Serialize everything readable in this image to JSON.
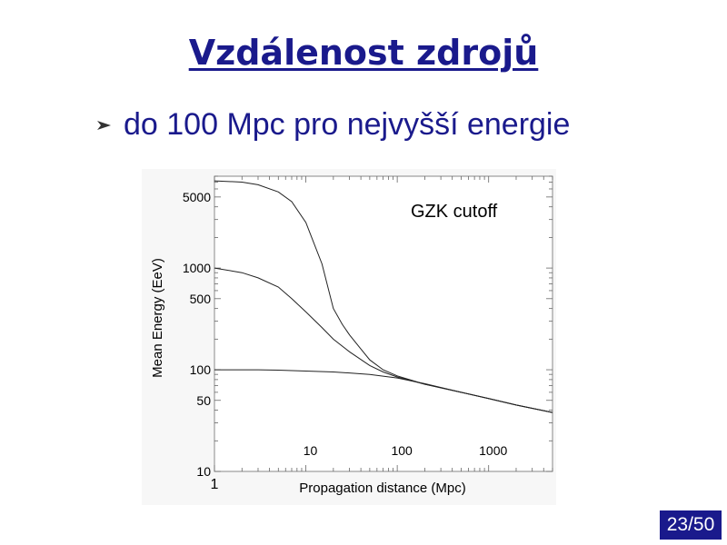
{
  "slide": {
    "title": "Vzdálenost zdrojů",
    "bullet_icon": "arrowhead-bullet-icon",
    "bullet_text": "do 100 Mpc pro nejvyšší energie",
    "page_number": "23/50",
    "accent_color": "#1a1a8c"
  },
  "chart_data": {
    "type": "line",
    "title": "GZK cutoff",
    "xlabel": "Propagation distance (Mpc)",
    "ylabel": "Mean Energy (EeV)",
    "x_scale": "log",
    "y_scale": "log",
    "xlim": [
      1,
      5000
    ],
    "ylim": [
      10,
      8000
    ],
    "x_ticks": [
      1,
      10,
      100,
      1000
    ],
    "x_tick_labels": [
      "1",
      "10",
      "100",
      "1000"
    ],
    "y_ticks": [
      10,
      50,
      100,
      500,
      1000,
      5000
    ],
    "y_tick_labels": [
      "10",
      "50",
      "100",
      "500",
      "1000",
      "5000"
    ],
    "grid": false,
    "series": [
      {
        "x": [
          1,
          2,
          3,
          5,
          7,
          10,
          15,
          20,
          25,
          30,
          40,
          50,
          70,
          100,
          200,
          500,
          1000,
          2000,
          5000
        ],
        "y": [
          7200,
          7000,
          6600,
          5600,
          4500,
          2800,
          1100,
          400,
          280,
          220,
          160,
          125,
          100,
          87,
          72,
          60,
          52,
          45,
          38
        ]
      },
      {
        "x": [
          1,
          2,
          3,
          5,
          7,
          10,
          15,
          20,
          30,
          50,
          70,
          100,
          200,
          500,
          1000,
          2000,
          5000
        ],
        "y": [
          1000,
          900,
          800,
          650,
          500,
          370,
          260,
          200,
          150,
          110,
          95,
          85,
          72,
          60,
          52,
          45,
          38
        ]
      },
      {
        "x": [
          1,
          2,
          3,
          5,
          10,
          20,
          30,
          50,
          100,
          200,
          500,
          1000,
          2000,
          5000
        ],
        "y": [
          100,
          100,
          100,
          99,
          97,
          95,
          93,
          90,
          83,
          73,
          60,
          52,
          45,
          38
        ]
      }
    ]
  }
}
